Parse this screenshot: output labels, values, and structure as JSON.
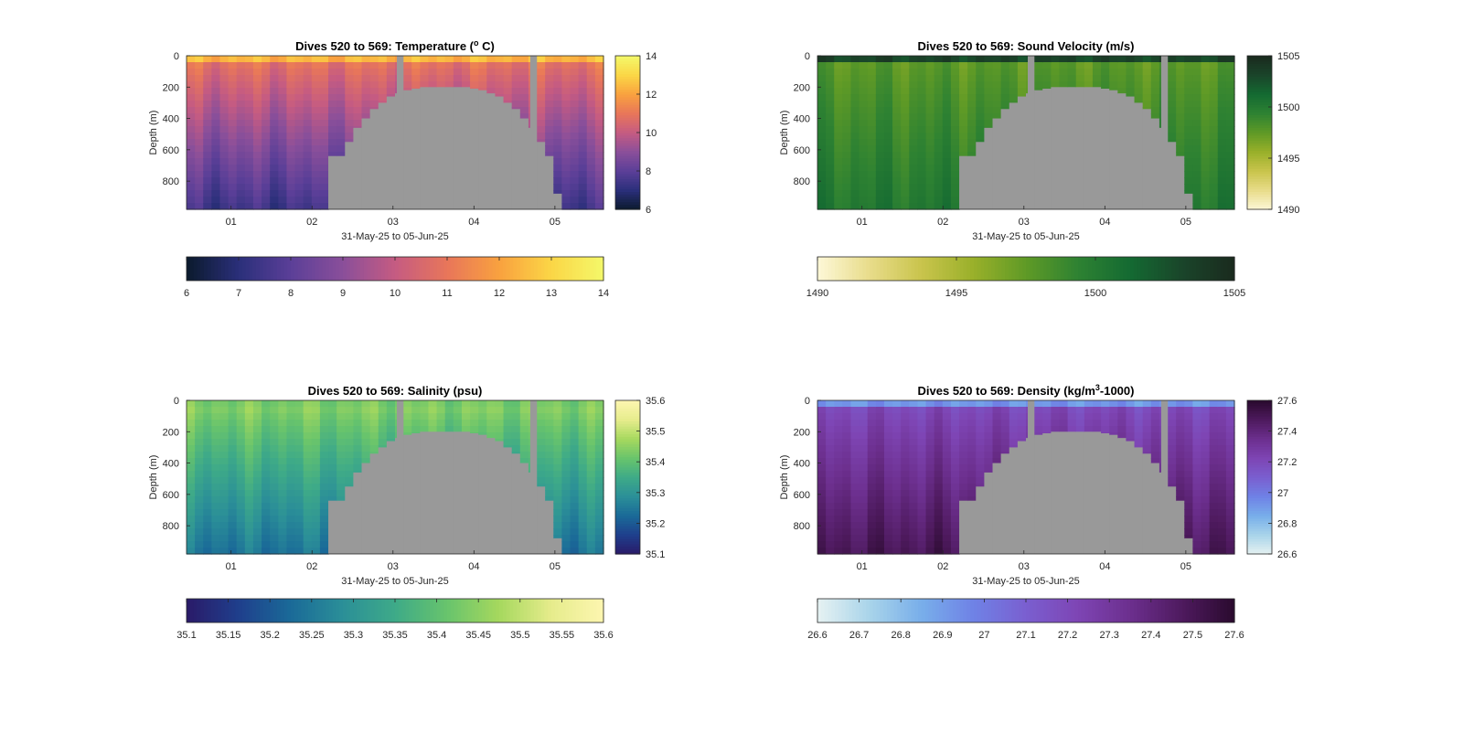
{
  "figure": {
    "background": "#ffffff",
    "x_tick_labels": [
      "01",
      "02",
      "03",
      "04",
      "05"
    ],
    "x_label": "31-May-25 to 05-Jun-25",
    "y_label": "Depth (m)",
    "y_tick_labels": [
      "0",
      "200",
      "400",
      "600",
      "800"
    ],
    "seabed_color": "#999999"
  },
  "chart_data": [
    {
      "type": "heatmap",
      "id": "temperature",
      "title": "Dives 520 to 569: Temperature (°C)",
      "title_parts": [
        "Dives 520 to 569: Temperature (",
        "o",
        " C)"
      ],
      "xlabel": "31-May-25 to 05-Jun-25",
      "ylabel": "Depth (m)",
      "x_range_days": [
        0.45,
        5.6
      ],
      "ylim": [
        0,
        980
      ],
      "y_reversed": true,
      "x_ticks": [
        "01",
        "02",
        "03",
        "04",
        "05"
      ],
      "y_ticks": [
        0,
        200,
        400,
        600,
        800
      ],
      "colormap": [
        "#0b1a2c",
        "#2a2f7a",
        "#5b3f98",
        "#8a4f9a",
        "#c55b82",
        "#e8765a",
        "#f9a13f",
        "#fbd646",
        "#f4f86a"
      ],
      "clim": [
        6,
        14
      ],
      "side_colorbar_ticks": [
        "6",
        "8",
        "10",
        "12",
        "14"
      ],
      "bottom_colorbar_ticks": [
        "6",
        "7",
        "8",
        "9",
        "10",
        "11",
        "12",
        "13",
        "14"
      ],
      "surface_value": 12.4,
      "mixed_layer_depth": 50,
      "upper_value": 10.9,
      "bottom_value": 7.4
    },
    {
      "type": "heatmap",
      "id": "sound-velocity",
      "title": "Dives 520 to 569: Sound Velocity (m/s)",
      "title_parts": [
        "Dives 520 to 569: Sound Velocity (m/s)"
      ],
      "xlabel": "31-May-25 to 05-Jun-25",
      "ylabel": "Depth (m)",
      "x_range_days": [
        0.45,
        5.6
      ],
      "ylim": [
        0,
        980
      ],
      "y_reversed": true,
      "x_ticks": [
        "01",
        "02",
        "03",
        "04",
        "05"
      ],
      "y_ticks": [
        0,
        200,
        400,
        600,
        800
      ],
      "colormap": [
        "#fdf8d8",
        "#e8dc8a",
        "#c9c44c",
        "#99b02a",
        "#5f9a26",
        "#2e8232",
        "#146a32",
        "#1a452a",
        "#1a2a1e"
      ],
      "clim": [
        1490,
        1505
      ],
      "side_colorbar_ticks": [
        "1490",
        "1495",
        "1500",
        "1505"
      ],
      "bottom_colorbar_ticks": [
        "1490",
        "1495",
        "1500",
        "1505"
      ],
      "surface_value": 1503.2,
      "mixed_layer_depth": 40,
      "upper_value": 1497.6,
      "bottom_value": 1500.2
    },
    {
      "type": "heatmap",
      "id": "salinity",
      "title": "Dives 520 to 569: Salinity (psu)",
      "title_parts": [
        "Dives 520 to 569: Salinity (psu)"
      ],
      "xlabel": "31-May-25 to 05-Jun-25",
      "ylabel": "Depth (m)",
      "x_range_days": [
        0.45,
        5.6
      ],
      "ylim": [
        0,
        980
      ],
      "y_reversed": true,
      "x_ticks": [
        "01",
        "02",
        "03",
        "04",
        "05"
      ],
      "y_ticks": [
        0,
        200,
        400,
        600,
        800
      ],
      "colormap": [
        "#2a1a68",
        "#1f3f8c",
        "#1a6a98",
        "#2b8f98",
        "#3eaa88",
        "#68c46c",
        "#a6d85e",
        "#e6ec8c",
        "#fdf6b0"
      ],
      "clim": [
        35.1,
        35.6
      ],
      "side_colorbar_ticks": [
        "35.1",
        "35.2",
        "35.3",
        "35.4",
        "35.5",
        "35.6"
      ],
      "bottom_colorbar_ticks": [
        "35.1",
        "35.15",
        "35.2",
        "35.25",
        "35.3",
        "35.35",
        "35.4",
        "35.45",
        "35.5",
        "35.55",
        "35.6"
      ],
      "surface_value": 35.43,
      "mixed_layer_depth": 60,
      "upper_value": 35.44,
      "bottom_value": 35.24
    },
    {
      "type": "heatmap",
      "id": "density",
      "title": "Dives 520 to 569: Density (kg/m³-1000)",
      "title_parts": [
        "Dives 520 to 569: Density (kg/m",
        "3",
        "-1000)"
      ],
      "xlabel": "31-May-25 to 05-Jun-25",
      "ylabel": "Depth (m)",
      "x_range_days": [
        0.45,
        5.6
      ],
      "ylim": [
        0,
        980
      ],
      "y_reversed": true,
      "x_ticks": [
        "01",
        "02",
        "03",
        "04",
        "05"
      ],
      "y_ticks": [
        0,
        200,
        400,
        600,
        800
      ],
      "colormap": [
        "#e6f2f2",
        "#a9d4ea",
        "#78aeea",
        "#6f82e6",
        "#7a5fd0",
        "#7e45b4",
        "#6c2f8e",
        "#4e1a5e",
        "#2a0a2e"
      ],
      "clim": [
        26.6,
        27.6
      ],
      "side_colorbar_ticks": [
        "26.6",
        "26.8",
        "27",
        "27.2",
        "27.4",
        "27.6"
      ],
      "bottom_colorbar_ticks": [
        "26.6",
        "26.7",
        "26.8",
        "26.9",
        "27",
        "27.1",
        "27.2",
        "27.3",
        "27.4",
        "27.5",
        "27.6"
      ],
      "surface_value": 26.92,
      "mixed_layer_depth": 45,
      "upper_value": 27.2,
      "bottom_value": 27.5
    }
  ]
}
